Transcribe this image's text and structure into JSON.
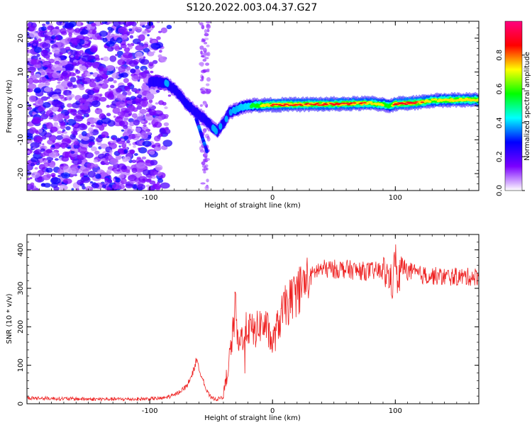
{
  "title": "S120.2022.003.04.37.G27",
  "colors": {
    "snr_line": "#ee2222",
    "ridge_low": "#7a00ff",
    "ridge_high": "#ff0000",
    "noise": "#8a2be2"
  },
  "chart_data": [
    {
      "type": "heatmap",
      "xlabel": "Height of straight line (km)",
      "ylabel": "Frequency (Hz)",
      "xlim": [
        -200,
        168
      ],
      "ylim": [
        -25,
        25
      ],
      "xticks": [
        -100,
        0,
        100
      ],
      "yticks": [
        -20,
        -10,
        0,
        10,
        20
      ],
      "colorbar": {
        "label": "Normalized spectral amplitude",
        "range": [
          0,
          1
        ],
        "ticks": [
          "0.0",
          "0.2",
          "0.4",
          "0.6",
          "0.8"
        ],
        "tick_values": [
          0,
          0.2,
          0.4,
          0.6,
          0.8
        ],
        "colormap": [
          "#ffffff",
          "#7b00ff",
          "#0000ff",
          "#00ffff",
          "#00ff00",
          "#ffff00",
          "#ff0000",
          "#ff0080"
        ]
      },
      "ridge": {
        "x": [
          -100,
          -92,
          -86,
          -80,
          -75,
          -70,
          -65,
          -60,
          -55,
          -50,
          -45,
          -40,
          -35,
          -30,
          -25,
          -20,
          -15,
          -10,
          0,
          20,
          40,
          60,
          80,
          90,
          95,
          100,
          110,
          120,
          130,
          150,
          168
        ],
        "freq": [
          7,
          7,
          6.5,
          5,
          3,
          0.5,
          -1,
          -2.5,
          -4,
          -6,
          -7.5,
          -5,
          -2,
          -1.2,
          -0.3,
          0,
          0.2,
          0.2,
          0.3,
          0.4,
          0.5,
          0.6,
          0.8,
          0.4,
          0,
          0.6,
          0.8,
          1,
          1.6,
          1.8,
          1.8
        ],
        "amplitude": [
          0.25,
          0.3,
          0.35,
          0.3,
          0.3,
          0.35,
          0.3,
          0.3,
          0.3,
          0.35,
          0.35,
          0.35,
          0.35,
          0.4,
          0.45,
          0.5,
          0.6,
          0.7,
          0.8,
          0.8,
          0.8,
          0.8,
          0.75,
          0.7,
          0.6,
          0.8,
          0.85,
          0.8,
          0.7,
          0.75,
          0.75
        ]
      },
      "noise_region_x": [
        -200,
        -80
      ]
    },
    {
      "type": "line",
      "xlabel": "Height of straight line (km)",
      "ylabel": "SNR (10 * v/v)",
      "xlim": [
        -200,
        168
      ],
      "ylim": [
        0,
        440
      ],
      "xticks": [
        -100,
        0,
        100
      ],
      "yticks": [
        0,
        100,
        200,
        300,
        400
      ],
      "series": [
        {
          "x": [
            -200,
            -150,
            -110,
            -90,
            -80,
            -70,
            -65,
            -62,
            -60,
            -57,
            -54,
            -50,
            -45,
            -40,
            -37,
            -35,
            -32,
            -30,
            -28,
            -25,
            -20,
            -15,
            -10,
            -5,
            0,
            5,
            10,
            15,
            20,
            25,
            30,
            35,
            40,
            50,
            60,
            70,
            80,
            90,
            95,
            98,
            100,
            102,
            105,
            110,
            120,
            140,
            168
          ],
          "y": [
            15,
            12,
            12,
            14,
            22,
            45,
            80,
            115,
            90,
            70,
            35,
            15,
            12,
            18,
            80,
            120,
            190,
            260,
            140,
            175,
            200,
            185,
            205,
            200,
            155,
            210,
            250,
            270,
            290,
            310,
            325,
            345,
            350,
            350,
            350,
            345,
            345,
            345,
            330,
            310,
            395,
            300,
            360,
            345,
            335,
            330,
            330
          ]
        }
      ]
    }
  ]
}
